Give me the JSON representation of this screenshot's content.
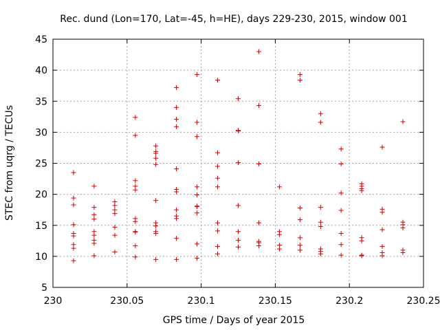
{
  "chart_data": {
    "type": "scatter",
    "title": "Rec. dund (Lon=170, Lat=-45, h=HE), days 229-230, 2015, window 001",
    "xlabel": "GPS time / Days of year 2015",
    "ylabel": "STEC from uqrg / TECUs",
    "xlim": [
      230,
      230.25
    ],
    "ylim": [
      5,
      45
    ],
    "xticks": [
      "230",
      "230.05",
      "230.1",
      "230.15",
      "230.2",
      "230.25"
    ],
    "yticks": [
      "5",
      "10",
      "15",
      "20",
      "25",
      "30",
      "35",
      "40",
      "45"
    ],
    "grid": true,
    "marker": "plus",
    "color": "#cc0000",
    "series": [
      {
        "points": [
          [
            230.0139,
            23.5
          ],
          [
            230.0139,
            19.4
          ],
          [
            230.0139,
            18.3
          ],
          [
            230.0139,
            15.1
          ],
          [
            230.0139,
            13.7
          ],
          [
            230.0139,
            13.3
          ],
          [
            230.0139,
            11.9
          ],
          [
            230.0139,
            11.3
          ],
          [
            230.0139,
            9.3
          ],
          [
            230.0278,
            21.3
          ],
          [
            230.0278,
            17.9
          ],
          [
            230.0278,
            16.7
          ],
          [
            230.0278,
            16.0
          ],
          [
            230.0278,
            14.0
          ],
          [
            230.0278,
            13.4
          ],
          [
            230.0278,
            12.6
          ],
          [
            230.0278,
            12.1
          ],
          [
            230.0278,
            10.1
          ],
          [
            230.0417,
            18.8
          ],
          [
            230.0417,
            18.2
          ],
          [
            230.0417,
            17.5
          ],
          [
            230.0417,
            16.9
          ],
          [
            230.0417,
            14.7
          ],
          [
            230.0417,
            13.4
          ],
          [
            230.0417,
            10.7
          ],
          [
            230.0556,
            32.4
          ],
          [
            230.0556,
            29.5
          ],
          [
            230.0556,
            22.2
          ],
          [
            230.0556,
            21.3
          ],
          [
            230.0556,
            20.7
          ],
          [
            230.0556,
            16.1
          ],
          [
            230.0556,
            15.6
          ],
          [
            230.0556,
            14.0
          ],
          [
            230.0556,
            13.9
          ],
          [
            230.0556,
            11.7
          ],
          [
            230.0556,
            9.9
          ],
          [
            230.0694,
            27.8
          ],
          [
            230.0694,
            26.9
          ],
          [
            230.0694,
            26.6
          ],
          [
            230.0694,
            25.8
          ],
          [
            230.0694,
            24.8
          ],
          [
            230.0694,
            19.0
          ],
          [
            230.0694,
            15.4
          ],
          [
            230.0694,
            14.9
          ],
          [
            230.0694,
            14.0
          ],
          [
            230.0694,
            13.7
          ],
          [
            230.0694,
            9.5
          ],
          [
            230.0833,
            37.2
          ],
          [
            230.0833,
            34.0
          ],
          [
            230.0833,
            32.1
          ],
          [
            230.0833,
            30.9
          ],
          [
            230.0833,
            24.1
          ],
          [
            230.0833,
            20.8
          ],
          [
            230.0833,
            20.4
          ],
          [
            230.0833,
            17.5
          ],
          [
            230.0833,
            16.5
          ],
          [
            230.0833,
            16.1
          ],
          [
            230.0833,
            12.9
          ],
          [
            230.0833,
            9.5
          ],
          [
            230.0972,
            39.3
          ],
          [
            230.0972,
            31.6
          ],
          [
            230.0972,
            29.3
          ],
          [
            230.0972,
            21.2
          ],
          [
            230.0972,
            19.9
          ],
          [
            230.0972,
            18.1
          ],
          [
            230.0972,
            18.0
          ],
          [
            230.0972,
            17.0
          ],
          [
            230.0972,
            12.0
          ],
          [
            230.0972,
            9.7
          ],
          [
            230.1111,
            38.4
          ],
          [
            230.1111,
            26.7
          ],
          [
            230.1111,
            24.5
          ],
          [
            230.1111,
            22.6
          ],
          [
            230.1111,
            21.2
          ],
          [
            230.1111,
            15.4
          ],
          [
            230.1111,
            14.1
          ],
          [
            230.1111,
            11.6
          ],
          [
            230.1111,
            10.4
          ],
          [
            230.125,
            35.4
          ],
          [
            230.125,
            30.3
          ],
          [
            230.125,
            30.2
          ],
          [
            230.125,
            25.1
          ],
          [
            230.125,
            18.2
          ],
          [
            230.125,
            14.0
          ],
          [
            230.125,
            12.6
          ],
          [
            230.125,
            11.5
          ],
          [
            230.1389,
            43.0
          ],
          [
            230.1389,
            34.3
          ],
          [
            230.1389,
            24.9
          ],
          [
            230.1389,
            15.4
          ],
          [
            230.1389,
            12.4
          ],
          [
            230.1389,
            12.2
          ],
          [
            230.1389,
            11.7
          ],
          [
            230.1528,
            21.2
          ],
          [
            230.1528,
            14.0
          ],
          [
            230.1528,
            13.5
          ],
          [
            230.1528,
            11.8
          ],
          [
            230.1528,
            11.2
          ],
          [
            230.1667,
            39.3
          ],
          [
            230.1667,
            38.4
          ],
          [
            230.1667,
            17.8
          ],
          [
            230.1667,
            15.9
          ],
          [
            230.1667,
            13.0
          ],
          [
            230.1667,
            11.8
          ],
          [
            230.1667,
            11.0
          ],
          [
            230.1806,
            33.0
          ],
          [
            230.1806,
            31.6
          ],
          [
            230.1806,
            17.9
          ],
          [
            230.1806,
            15.5
          ],
          [
            230.1806,
            14.8
          ],
          [
            230.1806,
            11.2
          ],
          [
            230.1806,
            10.8
          ],
          [
            230.1806,
            10.4
          ],
          [
            230.1944,
            27.3
          ],
          [
            230.1944,
            24.9
          ],
          [
            230.1944,
            20.2
          ],
          [
            230.1944,
            17.4
          ],
          [
            230.1944,
            13.7
          ],
          [
            230.1944,
            11.9
          ],
          [
            230.1944,
            10.2
          ],
          [
            230.2083,
            21.7
          ],
          [
            230.2083,
            21.3
          ],
          [
            230.2083,
            20.9
          ],
          [
            230.2083,
            20.6
          ],
          [
            230.2083,
            13.0
          ],
          [
            230.2083,
            12.5
          ],
          [
            230.2083,
            10.2
          ],
          [
            230.2083,
            10.1
          ],
          [
            230.2222,
            27.6
          ],
          [
            230.2222,
            17.6
          ],
          [
            230.2222,
            17.1
          ],
          [
            230.2222,
            14.3
          ],
          [
            230.2222,
            11.6
          ],
          [
            230.2222,
            10.6
          ],
          [
            230.2222,
            10.1
          ],
          [
            230.2361,
            31.7
          ],
          [
            230.2361,
            15.5
          ],
          [
            230.2361,
            15.1
          ],
          [
            230.2361,
            14.6
          ],
          [
            230.2361,
            11.0
          ],
          [
            230.2361,
            10.6
          ]
        ]
      }
    ]
  }
}
